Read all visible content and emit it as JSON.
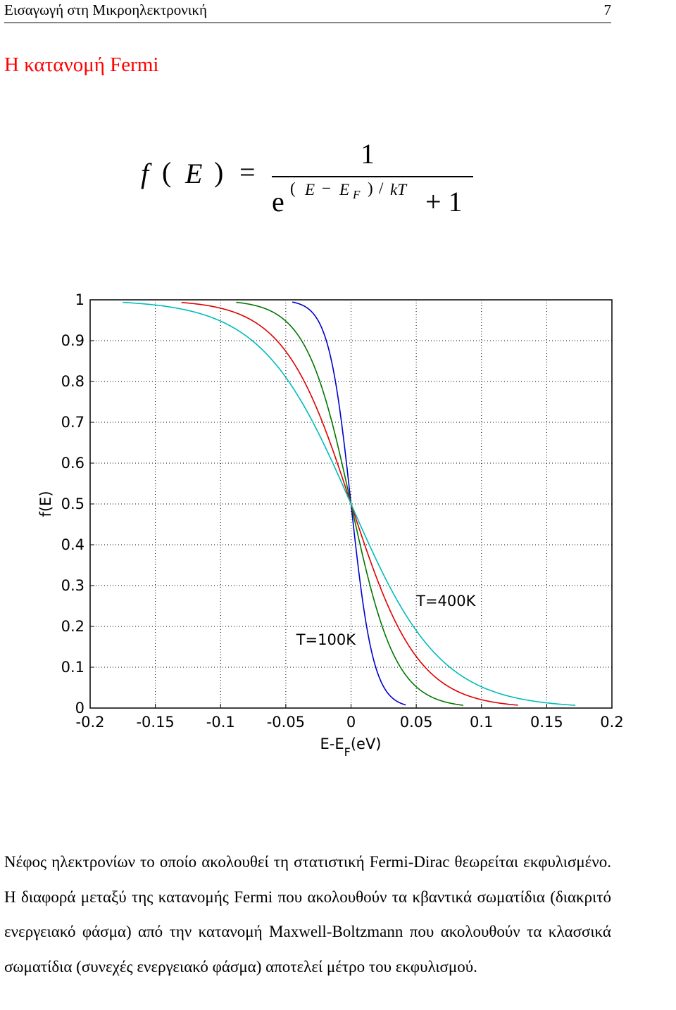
{
  "header": {
    "title": "Εισαγωγή στη Μικροηλεκτρονική",
    "page_number": "7"
  },
  "section": {
    "title": "Η κατανομή Fermi"
  },
  "formula": {
    "lhs_f": "f",
    "lhs_open": "(",
    "lhs_E": "E",
    "lhs_close": ")",
    "equals": "=",
    "numerator": "1",
    "base": "e",
    "exp_open": "(",
    "exp_E": "E",
    "exp_minus": "−",
    "exp_EF_E": "E",
    "exp_EF_sub": "F",
    "exp_close": ")",
    "exp_slash": "/",
    "exp_kT": "kT",
    "plus_one": "+ 1"
  },
  "chart_data": {
    "type": "line",
    "xlabel_main": "E-E",
    "xlabel_sub": "F",
    "xlabel_unit": "(eV)",
    "ylabel": "f(E)",
    "xlim": [
      -0.2,
      0.2
    ],
    "ylim": [
      0,
      1
    ],
    "x_ticks": [
      "-0.2",
      "-0.15",
      "-0.1",
      "-0.05",
      "0",
      "0.05",
      "0.1",
      "0.15",
      "0.2"
    ],
    "y_ticks": [
      "0",
      "0.1",
      "0.2",
      "0.3",
      "0.4",
      "0.5",
      "0.6",
      "0.7",
      "0.8",
      "0.9",
      "1"
    ],
    "grid": true,
    "series": [
      {
        "kT": 0.00862,
        "x_range": [
          -0.045,
          0.042
        ],
        "color": "#0000cc"
      },
      {
        "kT": 0.01724,
        "x_range": [
          -0.088,
          0.086
        ],
        "color": "#007700"
      },
      {
        "kT": 0.02585,
        "x_range": [
          -0.13,
          0.128
        ],
        "color": "#dd0000"
      },
      {
        "kT": 0.03447,
        "x_range": [
          -0.175,
          0.172
        ],
        "color": "#00bbbb"
      }
    ],
    "annotations": [
      {
        "text": "T=400K",
        "x": 0.05,
        "y": 0.25
      },
      {
        "text": "T=100K",
        "x": -0.042,
        "y": 0.155
      }
    ]
  },
  "body": {
    "paragraph": "Νέφος ηλεκτρονίων το οποίο ακολουθεί τη στατιστική Fermi-Dirac θεωρείται εκφυλισμένο. Η διαφορά μεταξύ της κατανομής Fermi που ακολουθούν τα κβαντικά σωματίδια (διακριτό ενεργειακό φάσμα) από την κατανομή Maxwell-Boltzmann που ακολουθούν τα κλασσικά σωματίδια (συνεχές ενεργειακό φάσμα) αποτελεί μέτρο του εκφυλισμού."
  }
}
